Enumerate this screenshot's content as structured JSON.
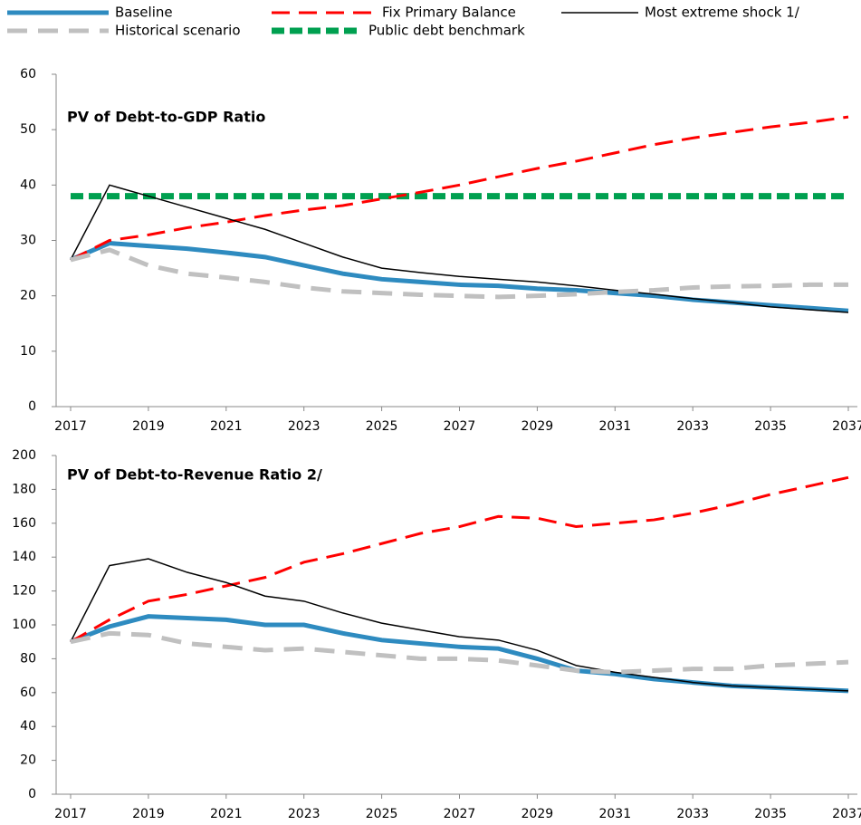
{
  "chart_data": [
    {
      "type": "line",
      "title": "PV of Debt-to-GDP  Ratio",
      "x": [
        2017,
        2018,
        2019,
        2020,
        2021,
        2022,
        2023,
        2024,
        2025,
        2026,
        2027,
        2028,
        2029,
        2030,
        2031,
        2032,
        2033,
        2034,
        2035,
        2036,
        2037
      ],
      "xlim": [
        2017,
        2037
      ],
      "xticks": [
        2017,
        2019,
        2021,
        2023,
        2025,
        2027,
        2029,
        2031,
        2033,
        2035,
        2037
      ],
      "ylim": [
        0,
        60
      ],
      "yticks": [
        0,
        10,
        20,
        30,
        40,
        50,
        60
      ],
      "series": [
        {
          "name": "Baseline",
          "color": "#2e8bc0",
          "style": "solid-thick",
          "values": [
            26.5,
            29.5,
            29,
            28.5,
            27.8,
            27,
            25.5,
            24,
            23,
            22.5,
            22,
            21.8,
            21.3,
            21,
            20.5,
            20,
            19.3,
            18.8,
            18.3,
            17.8,
            17.3
          ]
        },
        {
          "name": "Fix Primary Balance",
          "color": "#ff0000",
          "style": "dashed",
          "values": [
            26.5,
            30,
            31,
            32.3,
            33.3,
            34.5,
            35.5,
            36.3,
            37.5,
            38.7,
            40,
            41.5,
            43,
            44.3,
            45.8,
            47.3,
            48.5,
            49.5,
            50.5,
            51.3,
            52.3
          ]
        },
        {
          "name": "Most extreme shock  1/",
          "color": "#000000",
          "style": "solid-thin",
          "values": [
            26.5,
            40,
            38,
            36,
            34,
            32,
            29.5,
            27,
            25,
            24.2,
            23.5,
            23,
            22.5,
            21.8,
            21,
            20.3,
            19.5,
            18.8,
            18,
            17.5,
            17
          ]
        },
        {
          "name": "Historical scenario",
          "color": "#c0c0c0",
          "style": "dashed-thick",
          "values": [
            26.5,
            28.3,
            25.5,
            24,
            23.3,
            22.5,
            21.5,
            20.8,
            20.5,
            20.2,
            20,
            19.8,
            20,
            20.3,
            20.7,
            21,
            21.5,
            21.7,
            21.8,
            22,
            22
          ]
        },
        {
          "name": "Public debt benchmark",
          "color": "#00a050",
          "style": "dotted",
          "values": [
            38,
            38,
            38,
            38,
            38,
            38,
            38,
            38,
            38,
            38,
            38,
            38,
            38,
            38,
            38,
            38,
            38,
            38,
            38,
            38,
            38
          ]
        }
      ]
    },
    {
      "type": "line",
      "title": "PV of Debt-to-Revenue  Ratio 2/",
      "x": [
        2017,
        2018,
        2019,
        2020,
        2021,
        2022,
        2023,
        2024,
        2025,
        2026,
        2027,
        2028,
        2029,
        2030,
        2031,
        2032,
        2033,
        2034,
        2035,
        2036,
        2037
      ],
      "xlim": [
        2017,
        2037
      ],
      "xticks": [
        2017,
        2019,
        2021,
        2023,
        2025,
        2027,
        2029,
        2031,
        2033,
        2035,
        2037
      ],
      "ylim": [
        0,
        200
      ],
      "yticks": [
        0,
        20,
        40,
        60,
        80,
        100,
        120,
        140,
        160,
        180,
        200
      ],
      "series": [
        {
          "color": "#2e8bc0",
          "style": "solid-thick",
          "values": [
            90,
            99,
            105,
            104,
            103,
            100,
            100,
            95,
            91,
            89,
            87,
            86,
            80,
            73,
            71,
            68,
            66,
            64,
            63,
            62,
            61
          ]
        },
        {
          "color": "#ff0000",
          "style": "dashed",
          "values": [
            90,
            103,
            114,
            118,
            123,
            128,
            137,
            142,
            148,
            154,
            158,
            164,
            163,
            158,
            160,
            162,
            166,
            171,
            177,
            182,
            187
          ]
        },
        {
          "color": "#000000",
          "style": "solid-thin",
          "values": [
            90,
            135,
            139,
            131,
            125,
            117,
            114,
            107,
            101,
            97,
            93,
            91,
            85,
            76,
            72,
            69,
            66,
            64,
            63,
            62,
            61
          ]
        },
        {
          "color": "#c0c0c0",
          "style": "dashed-thick",
          "values": [
            90,
            95,
            94,
            89,
            87,
            85,
            86,
            84,
            82,
            80,
            80,
            79,
            76,
            73,
            72,
            73,
            74,
            74,
            76,
            77,
            78
          ]
        }
      ]
    }
  ]
}
